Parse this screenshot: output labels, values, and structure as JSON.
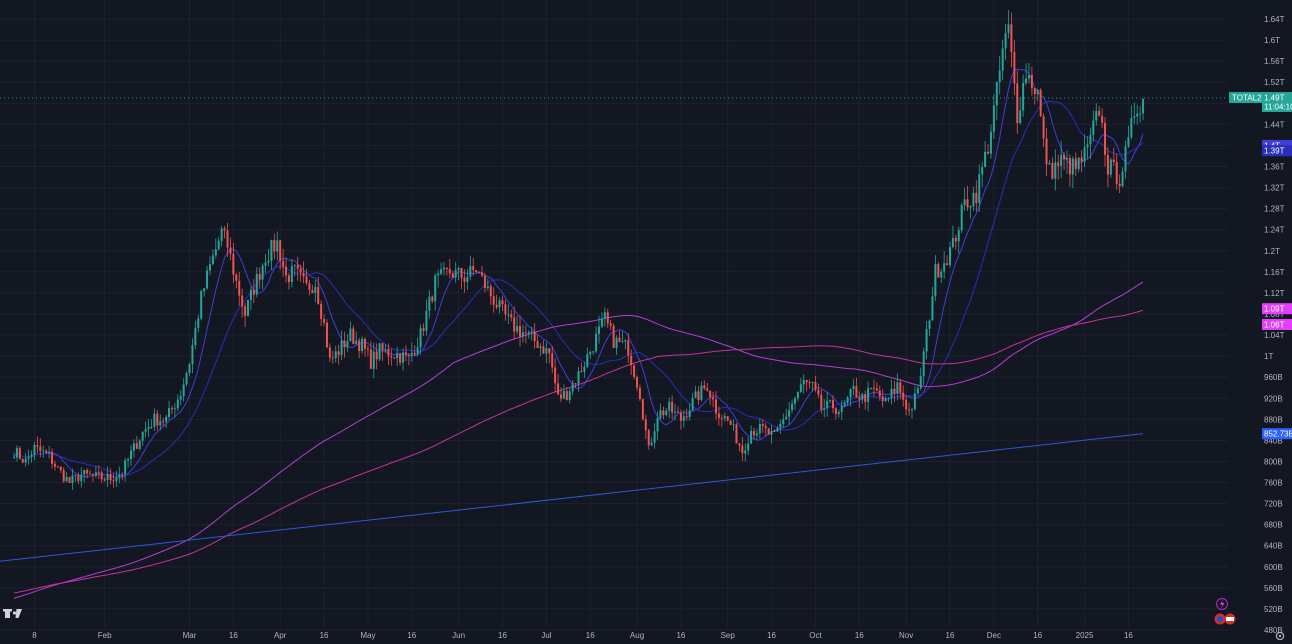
{
  "chart_data": {
    "type": "candlestick",
    "symbol": "TOTAL2",
    "colors": {
      "background": "#131722",
      "grid": "#1e2230",
      "up": "#26a69a",
      "down": "#ef5350",
      "ma_fast": "#3f3fd8",
      "ma_medium": "#2a2fb8",
      "ma_200": "#b43fd2",
      "ma_long": "#c2339b",
      "trend": "#2c5ad6",
      "price_line": "#26a69a"
    },
    "y_axis": {
      "ticks": [
        {
          "v": 480,
          "label": "480B"
        },
        {
          "v": 520,
          "label": "520B"
        },
        {
          "v": 560,
          "label": "560B"
        },
        {
          "v": 600,
          "label": "600B"
        },
        {
          "v": 640,
          "label": "640B"
        },
        {
          "v": 680,
          "label": "680B"
        },
        {
          "v": 720,
          "label": "720B"
        },
        {
          "v": 760,
          "label": "760B"
        },
        {
          "v": 800,
          "label": "800B"
        },
        {
          "v": 840,
          "label": "840B"
        },
        {
          "v": 880,
          "label": "880B"
        },
        {
          "v": 920,
          "label": "920B"
        },
        {
          "v": 960,
          "label": "960B"
        },
        {
          "v": 1000,
          "label": "1T"
        },
        {
          "v": 1040,
          "label": "1.04T"
        },
        {
          "v": 1080,
          "label": "1.08T"
        },
        {
          "v": 1120,
          "label": "1.12T"
        },
        {
          "v": 1160,
          "label": "1.16T"
        },
        {
          "v": 1200,
          "label": "1.2T"
        },
        {
          "v": 1240,
          "label": "1.24T"
        },
        {
          "v": 1280,
          "label": "1.28T"
        },
        {
          "v": 1320,
          "label": "1.32T"
        },
        {
          "v": 1360,
          "label": "1.36T"
        },
        {
          "v": 1400,
          "label": "1.4T"
        },
        {
          "v": 1440,
          "label": "1.44T"
        },
        {
          "v": 1480,
          "label": "1.48T"
        },
        {
          "v": 1520,
          "label": "1.52T"
        },
        {
          "v": 1560,
          "label": "1.56T"
        },
        {
          "v": 1600,
          "label": "1.6T"
        },
        {
          "v": 1640,
          "label": "1.64T"
        }
      ]
    },
    "x_axis": {
      "ticks": [
        {
          "date": "2024-01-08",
          "label": "8"
        },
        {
          "date": "2024-02-01",
          "label": "Feb"
        },
        {
          "date": "2024-03-01",
          "label": "Mar"
        },
        {
          "date": "2024-03-16",
          "label": "16"
        },
        {
          "date": "2024-04-01",
          "label": "Apr"
        },
        {
          "date": "2024-04-16",
          "label": "16"
        },
        {
          "date": "2024-05-01",
          "label": "May"
        },
        {
          "date": "2024-05-16",
          "label": "16"
        },
        {
          "date": "2024-06-01",
          "label": "Jun"
        },
        {
          "date": "2024-06-16",
          "label": "16"
        },
        {
          "date": "2024-07-01",
          "label": "Jul"
        },
        {
          "date": "2024-07-16",
          "label": "16"
        },
        {
          "date": "2024-08-01",
          "label": "Aug"
        },
        {
          "date": "2024-08-16",
          "label": "16"
        },
        {
          "date": "2024-09-01",
          "label": "Sep"
        },
        {
          "date": "2024-09-16",
          "label": "16"
        },
        {
          "date": "2024-10-01",
          "label": "Oct"
        },
        {
          "date": "2024-10-16",
          "label": "16"
        },
        {
          "date": "2024-11-01",
          "label": "Nov"
        },
        {
          "date": "2024-11-16",
          "label": "16"
        },
        {
          "date": "2024-12-01",
          "label": "Dec"
        },
        {
          "date": "2024-12-16",
          "label": "16"
        },
        {
          "date": "2025-01-01",
          "label": "2025"
        },
        {
          "date": "2025-01-16",
          "label": "16"
        }
      ]
    },
    "price_path": [
      [
        "2024-01-01",
        820
      ],
      [
        "2024-01-05",
        800
      ],
      [
        "2024-01-08",
        825
      ],
      [
        "2024-01-13",
        810
      ],
      [
        "2024-01-16",
        785
      ],
      [
        "2024-01-20",
        760
      ],
      [
        "2024-01-24",
        775
      ],
      [
        "2024-01-29",
        770
      ],
      [
        "2024-02-03",
        768
      ],
      [
        "2024-02-07",
        780
      ],
      [
        "2024-02-10",
        815
      ],
      [
        "2024-02-14",
        855
      ],
      [
        "2024-02-18",
        880
      ],
      [
        "2024-02-22",
        880
      ],
      [
        "2024-02-27",
        930
      ],
      [
        "2024-03-01",
        990
      ],
      [
        "2024-03-05",
        1110
      ],
      [
        "2024-03-08",
        1170
      ],
      [
        "2024-03-12",
        1235
      ],
      [
        "2024-03-14",
        1210
      ],
      [
        "2024-03-17",
        1140
      ],
      [
        "2024-03-20",
        1080
      ],
      [
        "2024-03-23",
        1130
      ],
      [
        "2024-03-27",
        1190
      ],
      [
        "2024-03-31",
        1215
      ],
      [
        "2024-04-03",
        1150
      ],
      [
        "2024-04-06",
        1160
      ],
      [
        "2024-04-10",
        1130
      ],
      [
        "2024-04-13",
        1140
      ],
      [
        "2024-04-16",
        1060
      ],
      [
        "2024-04-18",
        990
      ],
      [
        "2024-04-21",
        1010
      ],
      [
        "2024-04-25",
        1040
      ],
      [
        "2024-04-29",
        1020
      ],
      [
        "2024-05-02",
        990
      ],
      [
        "2024-05-05",
        1010
      ],
      [
        "2024-05-10",
        1005
      ],
      [
        "2024-05-15",
        995
      ],
      [
        "2024-05-19",
        1040
      ],
      [
        "2024-05-24",
        1140
      ],
      [
        "2024-05-29",
        1160
      ],
      [
        "2024-06-03",
        1150
      ],
      [
        "2024-06-07",
        1165
      ],
      [
        "2024-06-11",
        1125
      ],
      [
        "2024-06-15",
        1090
      ],
      [
        "2024-06-19",
        1060
      ],
      [
        "2024-06-23",
        1045
      ],
      [
        "2024-06-28",
        1025
      ],
      [
        "2024-07-02",
        1005
      ],
      [
        "2024-07-05",
        920
      ],
      [
        "2024-07-08",
        930
      ],
      [
        "2024-07-12",
        965
      ],
      [
        "2024-07-16",
        1010
      ],
      [
        "2024-07-21",
        1070
      ],
      [
        "2024-07-24",
        1030
      ],
      [
        "2024-07-29",
        1015
      ],
      [
        "2024-08-02",
        930
      ],
      [
        "2024-08-05",
        820
      ],
      [
        "2024-08-08",
        890
      ],
      [
        "2024-08-12",
        900
      ],
      [
        "2024-08-16",
        880
      ],
      [
        "2024-08-21",
        920
      ],
      [
        "2024-08-25",
        945
      ],
      [
        "2024-08-28",
        900
      ],
      [
        "2024-09-02",
        870
      ],
      [
        "2024-09-06",
        820
      ],
      [
        "2024-09-09",
        860
      ],
      [
        "2024-09-13",
        860
      ],
      [
        "2024-09-17",
        845
      ],
      [
        "2024-09-22",
        900
      ],
      [
        "2024-09-27",
        950
      ],
      [
        "2024-09-30",
        940
      ],
      [
        "2024-10-03",
        900
      ],
      [
        "2024-10-07",
        905
      ],
      [
        "2024-10-10",
        895
      ],
      [
        "2024-10-14",
        935
      ],
      [
        "2024-10-17",
        920
      ],
      [
        "2024-10-21",
        935
      ],
      [
        "2024-10-25",
        910
      ],
      [
        "2024-10-29",
        945
      ],
      [
        "2024-11-02",
        895
      ],
      [
        "2024-11-05",
        930
      ],
      [
        "2024-11-08",
        1040
      ],
      [
        "2024-11-11",
        1160
      ],
      [
        "2024-11-14",
        1180
      ],
      [
        "2024-11-17",
        1210
      ],
      [
        "2024-11-21",
        1290
      ],
      [
        "2024-11-25",
        1310
      ],
      [
        "2024-11-29",
        1400
      ],
      [
        "2024-12-02",
        1500
      ],
      [
        "2024-12-04",
        1580
      ],
      [
        "2024-12-06",
        1620
      ],
      [
        "2024-12-09",
        1460
      ],
      [
        "2024-12-12",
        1540
      ],
      [
        "2024-12-16",
        1500
      ],
      [
        "2024-12-18",
        1400
      ],
      [
        "2024-12-20",
        1350
      ],
      [
        "2024-12-24",
        1370
      ],
      [
        "2024-12-29",
        1355
      ],
      [
        "2025-01-02",
        1390
      ],
      [
        "2025-01-06",
        1470
      ],
      [
        "2025-01-09",
        1360
      ],
      [
        "2025-01-13",
        1340
      ],
      [
        "2025-01-16",
        1400
      ],
      [
        "2025-01-18",
        1465
      ],
      [
        "2025-01-21",
        1490
      ]
    ],
    "trend_line": [
      [
        "2024-01-01",
        620
      ],
      [
        "2025-01-21",
        852.73
      ]
    ],
    "price_line_value": 1490,
    "price_tags": [
      {
        "key": "total2",
        "value": 1490,
        "label": "TOTAL2",
        "price": "1.49T",
        "time": "11:04:10",
        "color": "#26a69a"
      },
      {
        "key": "ma_fast",
        "value": 1400,
        "price": "1.4T",
        "color": "#3f3fd8"
      },
      {
        "key": "ma_medium",
        "value": 1390,
        "price": "1.39T",
        "color": "#2a2fb8"
      },
      {
        "key": "ma_200",
        "value": 1090,
        "price": "1.09T",
        "color": "#e040fb"
      },
      {
        "key": "ma_long",
        "value": 1060,
        "price": "1.06T",
        "color": "#e040fb"
      },
      {
        "key": "trend",
        "value": 852.73,
        "price": "852.73B",
        "color": "#2962ff"
      }
    ],
    "grid": true,
    "legend": "none",
    "logo": "TV"
  }
}
